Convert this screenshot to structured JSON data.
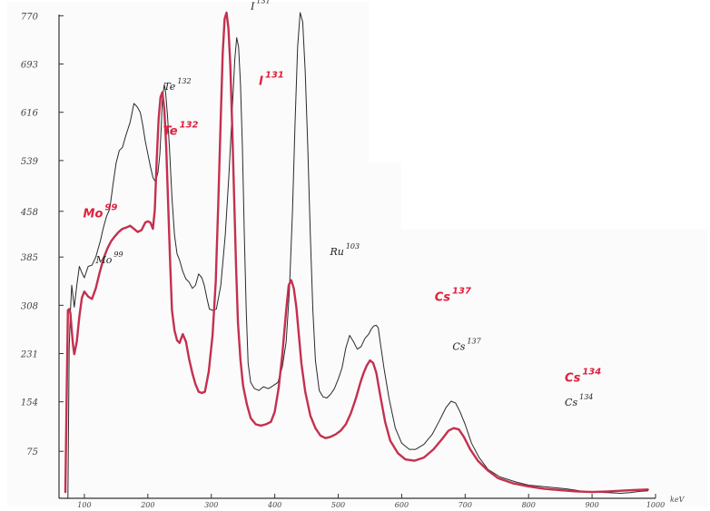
{
  "chart_data": {
    "type": "line",
    "xlabel": "",
    "ylabel": "",
    "x_unit": "keV",
    "xlim": [
      50,
      1000
    ],
    "ylim": [
      0,
      772
    ],
    "grid": false,
    "legend": "none",
    "y_ticks": [
      {
        "value": 75,
        "label": "75"
      },
      {
        "value": 154,
        "label": "154"
      },
      {
        "value": 231,
        "label": "231"
      },
      {
        "value": 308,
        "label": "308"
      },
      {
        "value": 385,
        "label": "385"
      },
      {
        "value": 458,
        "label": "458"
      },
      {
        "value": 539,
        "label": "539"
      },
      {
        "value": 616,
        "label": "616"
      },
      {
        "value": 693,
        "label": "693"
      },
      {
        "value": 770,
        "label": "770"
      }
    ],
    "x_ticks": [
      {
        "value": 100,
        "label": "100"
      },
      {
        "value": 200,
        "label": "200"
      },
      {
        "value": 300,
        "label": "300"
      },
      {
        "value": 400,
        "label": "400"
      },
      {
        "value": 500,
        "label": "500"
      },
      {
        "value": 600,
        "label": "600"
      },
      {
        "value": 700,
        "label": "700"
      },
      {
        "value": 800,
        "label": "800"
      },
      {
        "value": 900,
        "label": "900"
      },
      {
        "value": 1000,
        "label": "1000"
      }
    ],
    "series": [
      {
        "color": "#2a2a2a",
        "points": [
          [
            70,
            0
          ],
          [
            72,
            0
          ],
          [
            74,
            0
          ],
          [
            76,
            240
          ],
          [
            78,
            300
          ],
          [
            80,
            340
          ],
          [
            84,
            305
          ],
          [
            88,
            340
          ],
          [
            92,
            370
          ],
          [
            96,
            360
          ],
          [
            100,
            352
          ],
          [
            106,
            370
          ],
          [
            112,
            372
          ],
          [
            118,
            385
          ],
          [
            125,
            410
          ],
          [
            130,
            432
          ],
          [
            135,
            450
          ],
          [
            140,
            462
          ],
          [
            145,
            500
          ],
          [
            150,
            535
          ],
          [
            155,
            555
          ],
          [
            160,
            560
          ],
          [
            165,
            578
          ],
          [
            172,
            600
          ],
          [
            178,
            630
          ],
          [
            183,
            625
          ],
          [
            188,
            616
          ],
          [
            192,
            595
          ],
          [
            196,
            570
          ],
          [
            200,
            550
          ],
          [
            204,
            530
          ],
          [
            208,
            512
          ],
          [
            212,
            505
          ],
          [
            216,
            520
          ],
          [
            219,
            550
          ],
          [
            221,
            590
          ],
          [
            223,
            640
          ],
          [
            226,
            660
          ],
          [
            228,
            648
          ],
          [
            231,
            610
          ],
          [
            234,
            560
          ],
          [
            238,
            480
          ],
          [
            242,
            420
          ],
          [
            246,
            390
          ],
          [
            250,
            380
          ],
          [
            255,
            362
          ],
          [
            260,
            350
          ],
          [
            265,
            345
          ],
          [
            270,
            335
          ],
          [
            275,
            340
          ],
          [
            280,
            358
          ],
          [
            285,
            352
          ],
          [
            289,
            340
          ],
          [
            293,
            320
          ],
          [
            297,
            302
          ],
          [
            302,
            300
          ],
          [
            308,
            302
          ],
          [
            315,
            340
          ],
          [
            322,
            420
          ],
          [
            328,
            520
          ],
          [
            333,
            620
          ],
          [
            337,
            700
          ],
          [
            340,
            735
          ],
          [
            343,
            720
          ],
          [
            346,
            660
          ],
          [
            349,
            560
          ],
          [
            352,
            420
          ],
          [
            355,
            300
          ],
          [
            358,
            215
          ],
          [
            362,
            185
          ],
          [
            368,
            175
          ],
          [
            375,
            172
          ],
          [
            382,
            178
          ],
          [
            390,
            175
          ],
          [
            398,
            180
          ],
          [
            405,
            185
          ],
          [
            412,
            210
          ],
          [
            418,
            250
          ],
          [
            423,
            330
          ],
          [
            428,
            460
          ],
          [
            432,
            600
          ],
          [
            436,
            720
          ],
          [
            440,
            775
          ],
          [
            444,
            760
          ],
          [
            448,
            680
          ],
          [
            452,
            560
          ],
          [
            456,
            420
          ],
          [
            460,
            300
          ],
          [
            464,
            220
          ],
          [
            470,
            172
          ],
          [
            476,
            162
          ],
          [
            482,
            160
          ],
          [
            488,
            166
          ],
          [
            494,
            175
          ],
          [
            500,
            190
          ],
          [
            506,
            208
          ],
          [
            512,
            240
          ],
          [
            518,
            260
          ],
          [
            524,
            250
          ],
          [
            530,
            238
          ],
          [
            536,
            242
          ],
          [
            542,
            255
          ],
          [
            548,
            262
          ],
          [
            552,
            270
          ],
          [
            556,
            275
          ],
          [
            560,
            276
          ],
          [
            563,
            272
          ],
          [
            566,
            250
          ],
          [
            572,
            208
          ],
          [
            580,
            160
          ],
          [
            590,
            112
          ],
          [
            600,
            88
          ],
          [
            612,
            78
          ],
          [
            622,
            78
          ],
          [
            635,
            86
          ],
          [
            648,
            102
          ],
          [
            660,
            125
          ],
          [
            670,
            145
          ],
          [
            678,
            155
          ],
          [
            685,
            152
          ],
          [
            692,
            138
          ],
          [
            700,
            118
          ],
          [
            710,
            88
          ],
          [
            722,
            65
          ],
          [
            736,
            46
          ],
          [
            755,
            34
          ],
          [
            780,
            26
          ],
          [
            800,
            21
          ],
          [
            820,
            19
          ],
          [
            840,
            17
          ],
          [
            860,
            15
          ],
          [
            880,
            12
          ],
          [
            900,
            10
          ],
          [
            925,
            9
          ],
          [
            945,
            8
          ],
          [
            960,
            9
          ],
          [
            975,
            11
          ],
          [
            988,
            12
          ]
        ]
      },
      {
        "color": "#c4304e",
        "points": [
          [
            70,
            10
          ],
          [
            72,
            160
          ],
          [
            74,
            300
          ],
          [
            76,
            302
          ],
          [
            78,
            295
          ],
          [
            80,
            268
          ],
          [
            82,
            245
          ],
          [
            84,
            230
          ],
          [
            88,
            250
          ],
          [
            92,
            290
          ],
          [
            96,
            320
          ],
          [
            100,
            330
          ],
          [
            106,
            322
          ],
          [
            112,
            318
          ],
          [
            118,
            335
          ],
          [
            124,
            360
          ],
          [
            130,
            382
          ],
          [
            136,
            398
          ],
          [
            142,
            410
          ],
          [
            148,
            418
          ],
          [
            154,
            425
          ],
          [
            160,
            430
          ],
          [
            166,
            432
          ],
          [
            172,
            435
          ],
          [
            178,
            430
          ],
          [
            184,
            425
          ],
          [
            190,
            428
          ],
          [
            196,
            440
          ],
          [
            200,
            442
          ],
          [
            204,
            440
          ],
          [
            208,
            430
          ],
          [
            211,
            460
          ],
          [
            214,
            540
          ],
          [
            217,
            605
          ],
          [
            220,
            640
          ],
          [
            223,
            648
          ],
          [
            226,
            620
          ],
          [
            229,
            560
          ],
          [
            232,
            470
          ],
          [
            235,
            380
          ],
          [
            238,
            300
          ],
          [
            242,
            268
          ],
          [
            246,
            252
          ],
          [
            250,
            248
          ],
          [
            255,
            262
          ],
          [
            260,
            250
          ],
          [
            265,
            222
          ],
          [
            270,
            200
          ],
          [
            275,
            182
          ],
          [
            280,
            170
          ],
          [
            285,
            168
          ],
          [
            290,
            170
          ],
          [
            296,
            202
          ],
          [
            302,
            260
          ],
          [
            307,
            345
          ],
          [
            311,
            470
          ],
          [
            315,
            610
          ],
          [
            318,
            710
          ],
          [
            321,
            765
          ],
          [
            324,
            775
          ],
          [
            327,
            750
          ],
          [
            330,
            690
          ],
          [
            333,
            590
          ],
          [
            336,
            480
          ],
          [
            339,
            370
          ],
          [
            342,
            280
          ],
          [
            346,
            220
          ],
          [
            350,
            180
          ],
          [
            356,
            150
          ],
          [
            362,
            128
          ],
          [
            370,
            118
          ],
          [
            378,
            116
          ],
          [
            386,
            118
          ],
          [
            394,
            122
          ],
          [
            400,
            138
          ],
          [
            406,
            175
          ],
          [
            412,
            230
          ],
          [
            418,
            300
          ],
          [
            422,
            340
          ],
          [
            426,
            348
          ],
          [
            430,
            335
          ],
          [
            434,
            305
          ],
          [
            438,
            260
          ],
          [
            442,
            215
          ],
          [
            448,
            170
          ],
          [
            456,
            132
          ],
          [
            464,
            112
          ],
          [
            472,
            100
          ],
          [
            480,
            96
          ],
          [
            488,
            98
          ],
          [
            496,
            102
          ],
          [
            504,
            108
          ],
          [
            512,
            118
          ],
          [
            520,
            136
          ],
          [
            528,
            160
          ],
          [
            535,
            185
          ],
          [
            540,
            200
          ],
          [
            545,
            212
          ],
          [
            550,
            220
          ],
          [
            555,
            216
          ],
          [
            560,
            200
          ],
          [
            566,
            165
          ],
          [
            574,
            122
          ],
          [
            582,
            92
          ],
          [
            594,
            72
          ],
          [
            606,
            62
          ],
          [
            620,
            60
          ],
          [
            635,
            65
          ],
          [
            650,
            78
          ],
          [
            664,
            95
          ],
          [
            674,
            108
          ],
          [
            682,
            112
          ],
          [
            690,
            110
          ],
          [
            698,
            98
          ],
          [
            708,
            78
          ],
          [
            720,
            60
          ],
          [
            735,
            45
          ],
          [
            752,
            32
          ],
          [
            775,
            24
          ],
          [
            800,
            19
          ],
          [
            825,
            15
          ],
          [
            850,
            13
          ],
          [
            875,
            11
          ],
          [
            900,
            10
          ],
          [
            925,
            11
          ],
          [
            945,
            12
          ],
          [
            965,
            13
          ],
          [
            988,
            14
          ]
        ]
      }
    ],
    "annotations": [
      {
        "id": "i131-black",
        "text": "I",
        "sup": "131",
        "x": 362,
        "y": 780,
        "color": "black"
      },
      {
        "id": "i131-red",
        "text": "I",
        "sup": "131",
        "x": 375,
        "y": 660,
        "color": "red"
      },
      {
        "id": "te132-black",
        "text": "Te",
        "sup": "132",
        "x": 225,
        "y": 652,
        "color": "black"
      },
      {
        "id": "te132-red",
        "text": "Te",
        "sup": "132",
        "x": 224,
        "y": 580,
        "color": "red"
      },
      {
        "id": "mo99-red",
        "text": "Mo",
        "sup": "99",
        "x": 98,
        "y": 448,
        "color": "red"
      },
      {
        "id": "mo99-black",
        "text": "Mo",
        "sup": "99",
        "x": 118,
        "y": 375,
        "color": "black"
      },
      {
        "id": "ru103-black",
        "text": "Ru",
        "sup": "103",
        "x": 487,
        "y": 388,
        "color": "black"
      },
      {
        "id": "cs137-red",
        "text": "Cs",
        "sup": "137",
        "x": 652,
        "y": 315,
        "color": "red"
      },
      {
        "id": "cs137-black",
        "text": "Cs",
        "sup": "137",
        "x": 680,
        "y": 237,
        "color": "black"
      },
      {
        "id": "cs134-red",
        "text": "Cs",
        "sup": "134",
        "x": 857,
        "y": 186,
        "color": "red"
      },
      {
        "id": "cs134-black",
        "text": "Cs",
        "sup": "134",
        "x": 857,
        "y": 148,
        "color": "black"
      }
    ]
  }
}
